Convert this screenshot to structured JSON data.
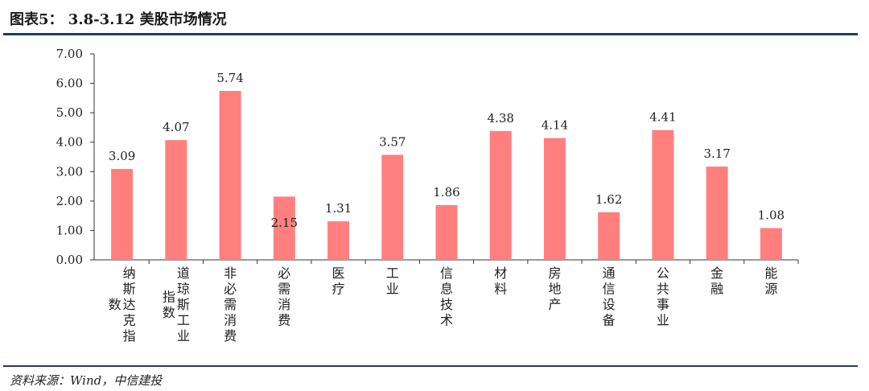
{
  "figure": {
    "title": "图表5： 3.8-3.12 美股市场情况",
    "source": "资料来源：Wind，中信建投"
  },
  "chart_data": {
    "type": "bar",
    "categories": [
      "纳斯达克指数",
      "道琼斯工业指数",
      "非必需消费",
      "必需消费",
      "医疗",
      "工业",
      "信息技术",
      "材料",
      "房地产",
      "通信设备",
      "公共事业",
      "金融",
      "能源"
    ],
    "values": [
      3.09,
      4.07,
      5.74,
      2.15,
      1.31,
      3.57,
      1.86,
      4.38,
      4.14,
      1.62,
      4.41,
      3.17,
      1.08
    ],
    "value_labels": [
      "3.09",
      "4.07",
      "5.74",
      "2.15",
      "1.31",
      "3.57",
      "1.86",
      "4.38",
      "4.14",
      "1.62",
      "4.41",
      "3.17",
      "1.08"
    ],
    "ylim": [
      0,
      7
    ],
    "yticks": [
      "0.00",
      "1.00",
      "2.00",
      "3.00",
      "4.00",
      "5.00",
      "6.00",
      "7.00"
    ],
    "bar_color": "#ff7f7f",
    "grid": false,
    "legend": "none"
  }
}
